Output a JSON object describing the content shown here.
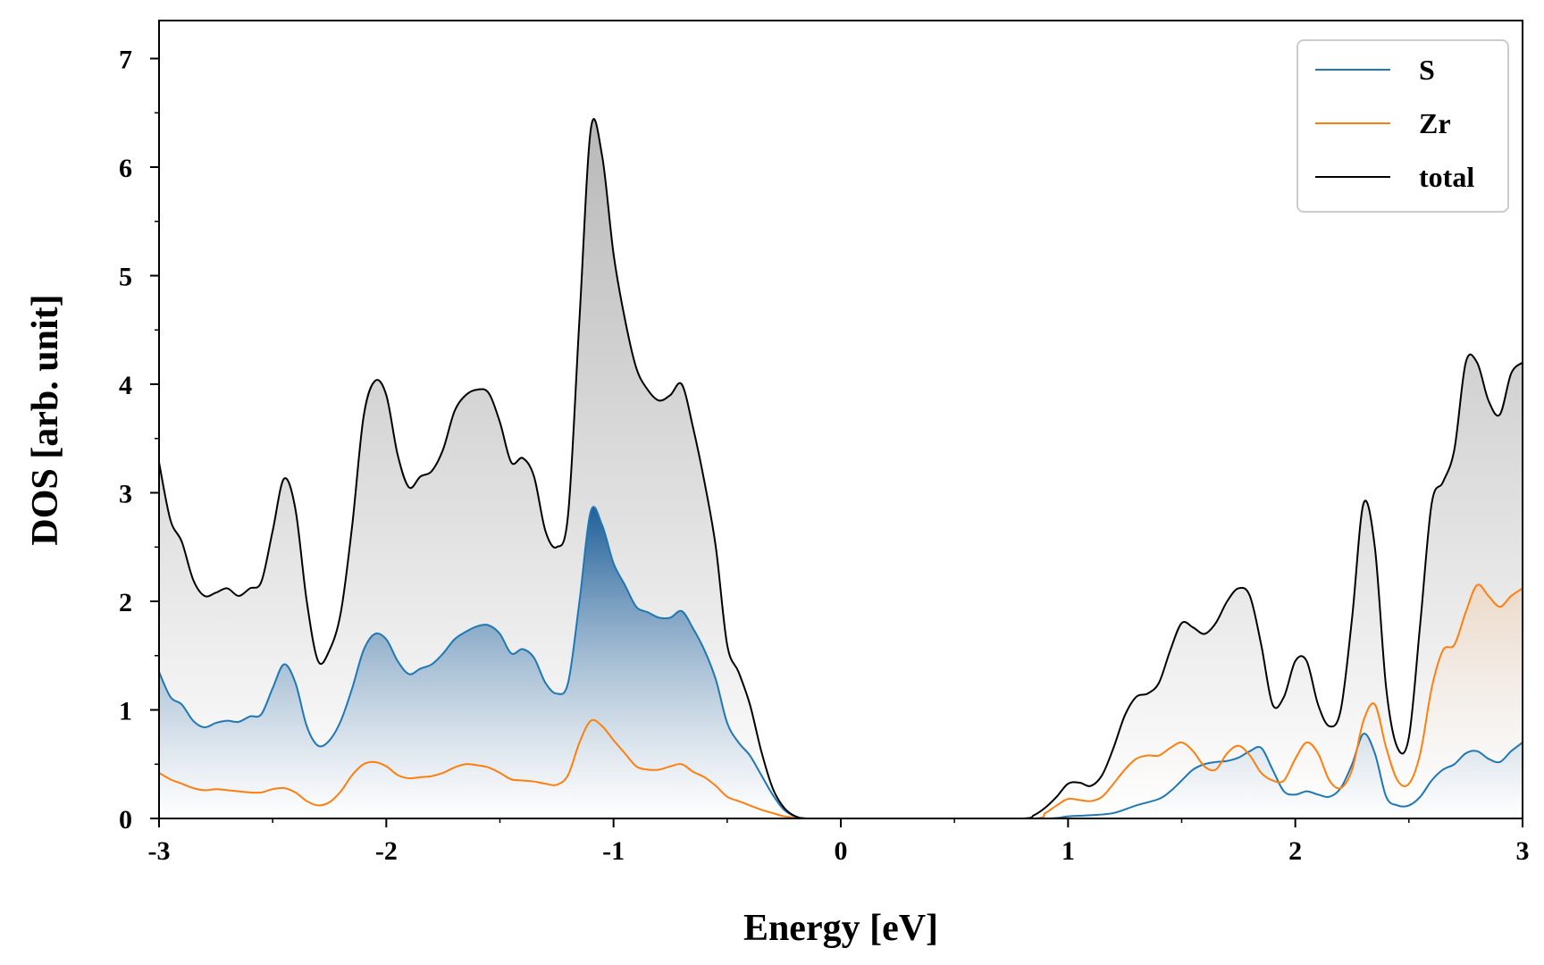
{
  "chart_data": {
    "type": "area",
    "xlabel": "Energy [eV]",
    "ylabel": "DOS [arb. unit]",
    "xlim": [
      -3,
      3
    ],
    "ylim": [
      0,
      7.35
    ],
    "xticks": [
      -3,
      -2,
      -1,
      0,
      1,
      2,
      3
    ],
    "xtick_labels": [
      "-3",
      "-2",
      "-1",
      "0",
      "1",
      "2",
      "3"
    ],
    "yticks": [
      0,
      1,
      2,
      3,
      4,
      5,
      6,
      7
    ],
    "ytick_labels": [
      "0",
      "1",
      "2",
      "3",
      "4",
      "5",
      "6",
      "7"
    ],
    "grid": false,
    "legend_position": "top-right",
    "legend_order": [
      "S",
      "Zr",
      "total"
    ],
    "fill_under_curves": true,
    "series": [
      {
        "name": "S",
        "color": "#1f77b4",
        "points": [
          [
            -3.0,
            1.35
          ],
          [
            -2.95,
            1.12
          ],
          [
            -2.9,
            1.05
          ],
          [
            -2.85,
            0.9
          ],
          [
            -2.8,
            0.84
          ],
          [
            -2.75,
            0.88
          ],
          [
            -2.7,
            0.9
          ],
          [
            -2.65,
            0.89
          ],
          [
            -2.6,
            0.94
          ],
          [
            -2.55,
            0.96
          ],
          [
            -2.5,
            1.2
          ],
          [
            -2.45,
            1.42
          ],
          [
            -2.4,
            1.25
          ],
          [
            -2.35,
            0.85
          ],
          [
            -2.3,
            0.67
          ],
          [
            -2.25,
            0.72
          ],
          [
            -2.2,
            0.9
          ],
          [
            -2.15,
            1.2
          ],
          [
            -2.1,
            1.55
          ],
          [
            -2.05,
            1.7
          ],
          [
            -2.0,
            1.65
          ],
          [
            -1.95,
            1.45
          ],
          [
            -1.9,
            1.33
          ],
          [
            -1.85,
            1.38
          ],
          [
            -1.8,
            1.42
          ],
          [
            -1.75,
            1.52
          ],
          [
            -1.7,
            1.65
          ],
          [
            -1.65,
            1.72
          ],
          [
            -1.6,
            1.77
          ],
          [
            -1.55,
            1.78
          ],
          [
            -1.5,
            1.7
          ],
          [
            -1.45,
            1.52
          ],
          [
            -1.4,
            1.56
          ],
          [
            -1.35,
            1.48
          ],
          [
            -1.3,
            1.25
          ],
          [
            -1.25,
            1.15
          ],
          [
            -1.2,
            1.25
          ],
          [
            -1.15,
            2.0
          ],
          [
            -1.1,
            2.83
          ],
          [
            -1.05,
            2.7
          ],
          [
            -1.0,
            2.35
          ],
          [
            -0.95,
            2.15
          ],
          [
            -0.9,
            1.95
          ],
          [
            -0.85,
            1.9
          ],
          [
            -0.8,
            1.85
          ],
          [
            -0.75,
            1.85
          ],
          [
            -0.7,
            1.91
          ],
          [
            -0.65,
            1.75
          ],
          [
            -0.6,
            1.55
          ],
          [
            -0.55,
            1.28
          ],
          [
            -0.5,
            0.88
          ],
          [
            -0.45,
            0.7
          ],
          [
            -0.4,
            0.58
          ],
          [
            -0.35,
            0.4
          ],
          [
            -0.3,
            0.22
          ],
          [
            -0.25,
            0.08
          ],
          [
            -0.2,
            0.02
          ],
          [
            -0.15,
            0.0
          ],
          [
            0.0,
            0.0
          ],
          [
            0.5,
            0.0
          ],
          [
            0.9,
            0.0
          ],
          [
            1.0,
            0.02
          ],
          [
            1.1,
            0.03
          ],
          [
            1.2,
            0.05
          ],
          [
            1.3,
            0.12
          ],
          [
            1.4,
            0.18
          ],
          [
            1.45,
            0.25
          ],
          [
            1.5,
            0.35
          ],
          [
            1.55,
            0.45
          ],
          [
            1.6,
            0.5
          ],
          [
            1.65,
            0.52
          ],
          [
            1.7,
            0.53
          ],
          [
            1.75,
            0.56
          ],
          [
            1.8,
            0.62
          ],
          [
            1.85,
            0.65
          ],
          [
            1.9,
            0.45
          ],
          [
            1.95,
            0.25
          ],
          [
            2.0,
            0.22
          ],
          [
            2.05,
            0.25
          ],
          [
            2.1,
            0.22
          ],
          [
            2.15,
            0.2
          ],
          [
            2.2,
            0.28
          ],
          [
            2.25,
            0.5
          ],
          [
            2.3,
            0.78
          ],
          [
            2.35,
            0.6
          ],
          [
            2.4,
            0.2
          ],
          [
            2.45,
            0.12
          ],
          [
            2.5,
            0.12
          ],
          [
            2.55,
            0.2
          ],
          [
            2.6,
            0.35
          ],
          [
            2.65,
            0.45
          ],
          [
            2.7,
            0.5
          ],
          [
            2.75,
            0.6
          ],
          [
            2.8,
            0.62
          ],
          [
            2.85,
            0.55
          ],
          [
            2.9,
            0.52
          ],
          [
            2.95,
            0.62
          ],
          [
            3.0,
            0.7
          ]
        ]
      },
      {
        "name": "Zr",
        "color": "#ff7f0e",
        "points": [
          [
            -3.0,
            0.42
          ],
          [
            -2.95,
            0.36
          ],
          [
            -2.9,
            0.32
          ],
          [
            -2.85,
            0.28
          ],
          [
            -2.8,
            0.26
          ],
          [
            -2.75,
            0.27
          ],
          [
            -2.7,
            0.26
          ],
          [
            -2.65,
            0.25
          ],
          [
            -2.6,
            0.24
          ],
          [
            -2.55,
            0.24
          ],
          [
            -2.5,
            0.27
          ],
          [
            -2.45,
            0.28
          ],
          [
            -2.4,
            0.24
          ],
          [
            -2.35,
            0.16
          ],
          [
            -2.3,
            0.12
          ],
          [
            -2.25,
            0.15
          ],
          [
            -2.2,
            0.25
          ],
          [
            -2.15,
            0.4
          ],
          [
            -2.1,
            0.5
          ],
          [
            -2.05,
            0.52
          ],
          [
            -2.0,
            0.48
          ],
          [
            -1.95,
            0.4
          ],
          [
            -1.9,
            0.37
          ],
          [
            -1.85,
            0.38
          ],
          [
            -1.8,
            0.39
          ],
          [
            -1.75,
            0.42
          ],
          [
            -1.7,
            0.47
          ],
          [
            -1.65,
            0.5
          ],
          [
            -1.6,
            0.49
          ],
          [
            -1.55,
            0.47
          ],
          [
            -1.5,
            0.42
          ],
          [
            -1.45,
            0.36
          ],
          [
            -1.4,
            0.35
          ],
          [
            -1.35,
            0.34
          ],
          [
            -1.3,
            0.32
          ],
          [
            -1.25,
            0.31
          ],
          [
            -1.2,
            0.4
          ],
          [
            -1.15,
            0.7
          ],
          [
            -1.1,
            0.9
          ],
          [
            -1.05,
            0.85
          ],
          [
            -1.0,
            0.72
          ],
          [
            -0.95,
            0.6
          ],
          [
            -0.9,
            0.48
          ],
          [
            -0.85,
            0.45
          ],
          [
            -0.8,
            0.45
          ],
          [
            -0.75,
            0.48
          ],
          [
            -0.7,
            0.5
          ],
          [
            -0.65,
            0.43
          ],
          [
            -0.6,
            0.38
          ],
          [
            -0.55,
            0.3
          ],
          [
            -0.5,
            0.2
          ],
          [
            -0.45,
            0.16
          ],
          [
            -0.4,
            0.12
          ],
          [
            -0.35,
            0.08
          ],
          [
            -0.3,
            0.05
          ],
          [
            -0.25,
            0.02
          ],
          [
            -0.2,
            0.01
          ],
          [
            -0.15,
            0.0
          ],
          [
            0.0,
            0.0
          ],
          [
            0.5,
            0.0
          ],
          [
            0.85,
            0.0
          ],
          [
            0.9,
            0.05
          ],
          [
            0.95,
            0.12
          ],
          [
            1.0,
            0.18
          ],
          [
            1.05,
            0.17
          ],
          [
            1.1,
            0.16
          ],
          [
            1.15,
            0.2
          ],
          [
            1.2,
            0.32
          ],
          [
            1.25,
            0.45
          ],
          [
            1.3,
            0.55
          ],
          [
            1.35,
            0.58
          ],
          [
            1.4,
            0.58
          ],
          [
            1.45,
            0.65
          ],
          [
            1.5,
            0.7
          ],
          [
            1.55,
            0.62
          ],
          [
            1.6,
            0.48
          ],
          [
            1.65,
            0.45
          ],
          [
            1.7,
            0.6
          ],
          [
            1.75,
            0.67
          ],
          [
            1.8,
            0.58
          ],
          [
            1.85,
            0.42
          ],
          [
            1.9,
            0.35
          ],
          [
            1.95,
            0.35
          ],
          [
            2.0,
            0.55
          ],
          [
            2.05,
            0.7
          ],
          [
            2.1,
            0.6
          ],
          [
            2.15,
            0.35
          ],
          [
            2.2,
            0.28
          ],
          [
            2.25,
            0.45
          ],
          [
            2.3,
            0.9
          ],
          [
            2.35,
            1.05
          ],
          [
            2.4,
            0.65
          ],
          [
            2.45,
            0.35
          ],
          [
            2.5,
            0.32
          ],
          [
            2.55,
            0.6
          ],
          [
            2.6,
            1.2
          ],
          [
            2.65,
            1.55
          ],
          [
            2.7,
            1.6
          ],
          [
            2.75,
            1.9
          ],
          [
            2.8,
            2.15
          ],
          [
            2.85,
            2.05
          ],
          [
            2.9,
            1.95
          ],
          [
            2.95,
            2.05
          ],
          [
            3.0,
            2.12
          ]
        ]
      },
      {
        "name": "total",
        "color": "#000000",
        "points": [
          [
            -3.0,
            3.28
          ],
          [
            -2.95,
            2.75
          ],
          [
            -2.9,
            2.55
          ],
          [
            -2.85,
            2.2
          ],
          [
            -2.8,
            2.05
          ],
          [
            -2.75,
            2.08
          ],
          [
            -2.7,
            2.12
          ],
          [
            -2.65,
            2.05
          ],
          [
            -2.6,
            2.12
          ],
          [
            -2.55,
            2.18
          ],
          [
            -2.5,
            2.65
          ],
          [
            -2.45,
            3.13
          ],
          [
            -2.4,
            2.85
          ],
          [
            -2.35,
            2.0
          ],
          [
            -2.3,
            1.45
          ],
          [
            -2.25,
            1.55
          ],
          [
            -2.2,
            1.9
          ],
          [
            -2.15,
            2.7
          ],
          [
            -2.1,
            3.7
          ],
          [
            -2.05,
            4.03
          ],
          [
            -2.0,
            3.9
          ],
          [
            -1.95,
            3.35
          ],
          [
            -1.9,
            3.05
          ],
          [
            -1.85,
            3.15
          ],
          [
            -1.8,
            3.2
          ],
          [
            -1.75,
            3.4
          ],
          [
            -1.7,
            3.75
          ],
          [
            -1.65,
            3.9
          ],
          [
            -1.6,
            3.95
          ],
          [
            -1.55,
            3.92
          ],
          [
            -1.5,
            3.65
          ],
          [
            -1.45,
            3.28
          ],
          [
            -1.4,
            3.32
          ],
          [
            -1.35,
            3.15
          ],
          [
            -1.3,
            2.65
          ],
          [
            -1.25,
            2.5
          ],
          [
            -1.2,
            2.8
          ],
          [
            -1.15,
            4.6
          ],
          [
            -1.1,
            6.35
          ],
          [
            -1.05,
            6.1
          ],
          [
            -1.0,
            5.2
          ],
          [
            -0.95,
            4.6
          ],
          [
            -0.9,
            4.15
          ],
          [
            -0.85,
            3.95
          ],
          [
            -0.8,
            3.85
          ],
          [
            -0.75,
            3.9
          ],
          [
            -0.7,
            4.0
          ],
          [
            -0.65,
            3.6
          ],
          [
            -0.6,
            3.1
          ],
          [
            -0.55,
            2.5
          ],
          [
            -0.5,
            1.6
          ],
          [
            -0.45,
            1.35
          ],
          [
            -0.4,
            1.05
          ],
          [
            -0.35,
            0.62
          ],
          [
            -0.3,
            0.28
          ],
          [
            -0.25,
            0.1
          ],
          [
            -0.2,
            0.02
          ],
          [
            -0.15,
            0.0
          ],
          [
            0.0,
            0.0
          ],
          [
            0.5,
            0.0
          ],
          [
            0.8,
            0.0
          ],
          [
            0.85,
            0.03
          ],
          [
            0.9,
            0.1
          ],
          [
            0.95,
            0.2
          ],
          [
            1.0,
            0.32
          ],
          [
            1.05,
            0.33
          ],
          [
            1.1,
            0.3
          ],
          [
            1.15,
            0.4
          ],
          [
            1.2,
            0.65
          ],
          [
            1.25,
            0.95
          ],
          [
            1.3,
            1.12
          ],
          [
            1.35,
            1.15
          ],
          [
            1.4,
            1.25
          ],
          [
            1.45,
            1.55
          ],
          [
            1.5,
            1.8
          ],
          [
            1.55,
            1.76
          ],
          [
            1.6,
            1.7
          ],
          [
            1.65,
            1.8
          ],
          [
            1.7,
            2.0
          ],
          [
            1.75,
            2.12
          ],
          [
            1.8,
            2.05
          ],
          [
            1.85,
            1.6
          ],
          [
            1.9,
            1.05
          ],
          [
            1.95,
            1.12
          ],
          [
            2.0,
            1.45
          ],
          [
            2.05,
            1.45
          ],
          [
            2.1,
            1.05
          ],
          [
            2.15,
            0.85
          ],
          [
            2.2,
            1.0
          ],
          [
            2.25,
            1.85
          ],
          [
            2.3,
            2.9
          ],
          [
            2.35,
            2.5
          ],
          [
            2.4,
            1.2
          ],
          [
            2.45,
            0.65
          ],
          [
            2.5,
            0.75
          ],
          [
            2.55,
            1.8
          ],
          [
            2.6,
            2.9
          ],
          [
            2.65,
            3.1
          ],
          [
            2.7,
            3.4
          ],
          [
            2.75,
            4.2
          ],
          [
            2.8,
            4.2
          ],
          [
            2.85,
            3.85
          ],
          [
            2.9,
            3.72
          ],
          [
            2.95,
            4.1
          ],
          [
            3.0,
            4.2
          ]
        ]
      }
    ]
  }
}
